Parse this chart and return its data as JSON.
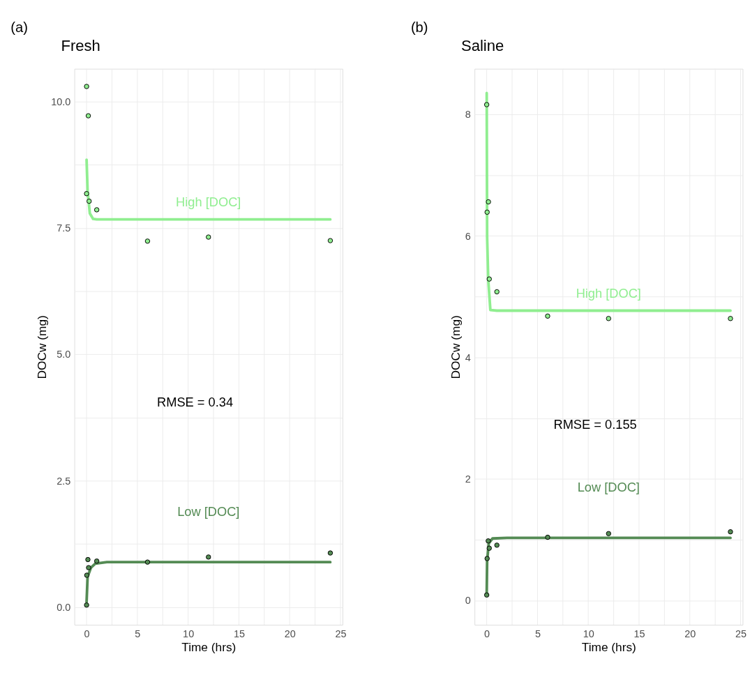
{
  "chart_data": [
    {
      "type": "line",
      "title": "Fresh",
      "xlabel": "Time (hrs)",
      "ylabel": "DOCw (mg)",
      "annotations": [
        "(a)",
        "RMSE = 0.34"
      ],
      "xlim": [
        -1.2,
        25.2
      ],
      "ylim": [
        -0.35,
        10.65
      ],
      "xticks": [
        0,
        {
          "value": 2.5,
          "label": null
        },
        5,
        {
          "value": 7.5,
          "label": null
        },
        10,
        {
          "value": 12.5,
          "label": null
        },
        15,
        {
          "value": 17.5,
          "label": null
        },
        20,
        {
          "value": 22.5,
          "label": null
        },
        25
      ],
      "yticks": [
        {
          "value": 0,
          "label": "0.0"
        },
        {
          "value": 1.25,
          "label": null
        },
        {
          "value": 2.5,
          "label": "2.5"
        },
        {
          "value": 3.75,
          "label": null
        },
        {
          "value": 5,
          "label": "5.0"
        },
        {
          "value": 6.25,
          "label": null
        },
        {
          "value": 7.5,
          "label": "7.5"
        },
        {
          "value": 8.75,
          "label": null
        },
        {
          "value": 10,
          "label": "10.0"
        }
      ],
      "grid": true,
      "series": [
        {
          "name": "High [DOC]",
          "color": "#90ee90",
          "x": [
            0,
            0.1,
            0.32,
            0.64,
            1,
            24
          ],
          "values": [
            8.85,
            8.23,
            7.79,
            7.68,
            7.67,
            7.67
          ]
        },
        {
          "name": "Low [DOC]",
          "color": "#548b54",
          "x": [
            0,
            0.1,
            0.43,
            0.85,
            2,
            24
          ],
          "values": [
            0.1,
            0.6,
            0.78,
            0.86,
            0.89,
            0.89
          ]
        },
        {
          "type": "scatter",
          "color": "#90ee90",
          "marker": "circle",
          "x": [
            0,
            0.17,
            0,
            0.25,
            1,
            6,
            12,
            24
          ],
          "values": [
            10.3,
            9.72,
            8.18,
            8.03,
            7.86,
            7.24,
            7.32,
            7.25
          ]
        },
        {
          "type": "scatter",
          "color": "#548b54",
          "marker": "circle",
          "x": [
            0,
            0.02,
            0.2,
            0.13,
            1,
            6,
            12,
            24
          ],
          "values": [
            0.04,
            0.63,
            0.78,
            0.94,
            0.91,
            0.89,
            0.99,
            1.07
          ]
        }
      ]
    },
    {
      "type": "line",
      "title": "Saline",
      "xlabel": "Time (hrs)",
      "ylabel": "DOCw (mg)",
      "annotations": [
        "(b)",
        "RMSE = 0.155"
      ],
      "xlim": [
        -1.2,
        25.2
      ],
      "ylim": [
        -0.4,
        8.75
      ],
      "xticks": [
        0,
        {
          "value": 2.5,
          "label": null
        },
        5,
        {
          "value": 7.5,
          "label": null
        },
        10,
        {
          "value": 12.5,
          "label": null
        },
        15,
        {
          "value": 17.5,
          "label": null
        },
        20,
        {
          "value": 22.5,
          "label": null
        },
        25
      ],
      "yticks": [
        0,
        {
          "value": 1,
          "label": null
        },
        2,
        {
          "value": 3,
          "label": null
        },
        4,
        {
          "value": 5,
          "label": null
        },
        6,
        {
          "value": 7,
          "label": null
        },
        8
      ],
      "grid": true,
      "series": [
        {
          "name": "High [DOC]",
          "color": "#90ee90",
          "x": [
            0,
            0.04,
            0.15,
            0.36,
            1,
            24
          ],
          "values": [
            8.35,
            5.98,
            5.28,
            4.78,
            4.77,
            4.77
          ]
        },
        {
          "name": "Low [DOC]",
          "color": "#548b54",
          "x": [
            0,
            0.04,
            0.2,
            0.57,
            2,
            24
          ],
          "values": [
            0.12,
            0.65,
            0.94,
            1.02,
            1.03,
            1.03
          ]
        },
        {
          "type": "scatter",
          "color": "#90ee90",
          "marker": "circle",
          "x": [
            0,
            0.17,
            0.04,
            0.25,
            1,
            6,
            12,
            24
          ],
          "values": [
            8.16,
            6.56,
            6.39,
            5.29,
            5.08,
            4.68,
            4.64,
            4.64
          ]
        },
        {
          "type": "scatter",
          "color": "#548b54",
          "marker": "circle",
          "x": [
            0,
            0.04,
            0.25,
            0.15,
            1,
            6,
            12,
            24
          ],
          "values": [
            0.09,
            0.69,
            0.86,
            0.98,
            0.91,
            1.04,
            1.1,
            1.13
          ]
        }
      ]
    }
  ]
}
